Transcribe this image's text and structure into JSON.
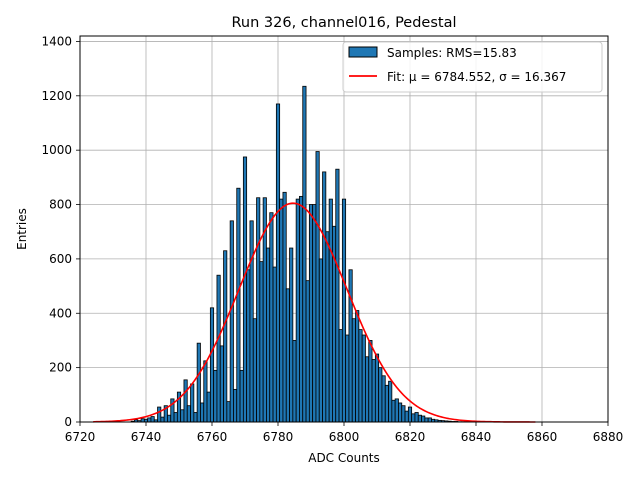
{
  "chart_data": {
    "type": "bar",
    "title": "Run 326, channel016, Pedestal",
    "xlabel": "ADC Counts",
    "ylabel": "Entries",
    "xlim": [
      6720,
      6880
    ],
    "ylim": [
      0,
      1420
    ],
    "xticks": [
      "6720",
      "6740",
      "6760",
      "6780",
      "6800",
      "6820",
      "6840",
      "6860",
      "6880"
    ],
    "yticks": [
      "0",
      "200",
      "400",
      "600",
      "800",
      "1000",
      "1200",
      "1400"
    ],
    "grid": true,
    "legend_position": "top-right",
    "legend": {
      "hist_label": "Samples: RMS=15.83",
      "fit_label": "Fit: μ = 6784.552, σ = 16.367"
    },
    "colors": {
      "bar_fill": "#1f77b4",
      "bar_edge": "#000000",
      "fit_line": "#ff0000",
      "grid": "#b0b0b0"
    },
    "fit": {
      "mu": 6784.552,
      "sigma": 16.367,
      "amplitude": 805,
      "x_range": [
        6724,
        6858
      ]
    },
    "series": [
      {
        "name": "Samples: RMS=15.83",
        "bin_width": 1,
        "x": [
          6736,
          6737,
          6738,
          6739,
          6740,
          6741,
          6742,
          6743,
          6744,
          6745,
          6746,
          6747,
          6748,
          6749,
          6750,
          6751,
          6752,
          6753,
          6754,
          6755,
          6756,
          6757,
          6758,
          6759,
          6760,
          6761,
          6762,
          6763,
          6764,
          6765,
          6766,
          6767,
          6768,
          6769,
          6770,
          6771,
          6772,
          6773,
          6774,
          6775,
          6776,
          6777,
          6778,
          6779,
          6780,
          6781,
          6782,
          6783,
          6784,
          6785,
          6786,
          6787,
          6788,
          6789,
          6790,
          6791,
          6792,
          6793,
          6794,
          6795,
          6796,
          6797,
          6798,
          6799,
          6800,
          6801,
          6802,
          6803,
          6804,
          6805,
          6806,
          6807,
          6808,
          6809,
          6810,
          6811,
          6812,
          6813,
          6814,
          6815,
          6816,
          6817,
          6818,
          6819,
          6820,
          6821,
          6822,
          6823,
          6824,
          6825,
          6826,
          6827,
          6828,
          6829,
          6830,
          6831,
          6832,
          6833,
          6834,
          6835,
          6836,
          6837,
          6838
        ],
        "values": [
          3,
          8,
          5,
          12,
          10,
          15,
          20,
          8,
          55,
          18,
          60,
          25,
          85,
          35,
          110,
          45,
          155,
          60,
          140,
          35,
          290,
          70,
          225,
          110,
          420,
          190,
          540,
          280,
          630,
          75,
          740,
          120,
          860,
          190,
          975,
          560,
          740,
          380,
          825,
          590,
          825,
          640,
          770,
          570,
          1170,
          820,
          845,
          490,
          640,
          300,
          820,
          830,
          1235,
          520,
          800,
          800,
          995,
          600,
          920,
          700,
          820,
          720,
          930,
          340,
          820,
          320,
          560,
          380,
          410,
          340,
          320,
          240,
          300,
          230,
          250,
          200,
          170,
          135,
          150,
          80,
          85,
          70,
          60,
          40,
          55,
          30,
          35,
          25,
          22,
          15,
          15,
          10,
          8,
          6,
          5,
          4,
          3,
          2,
          2,
          1,
          1,
          1,
          1
        ]
      }
    ]
  }
}
